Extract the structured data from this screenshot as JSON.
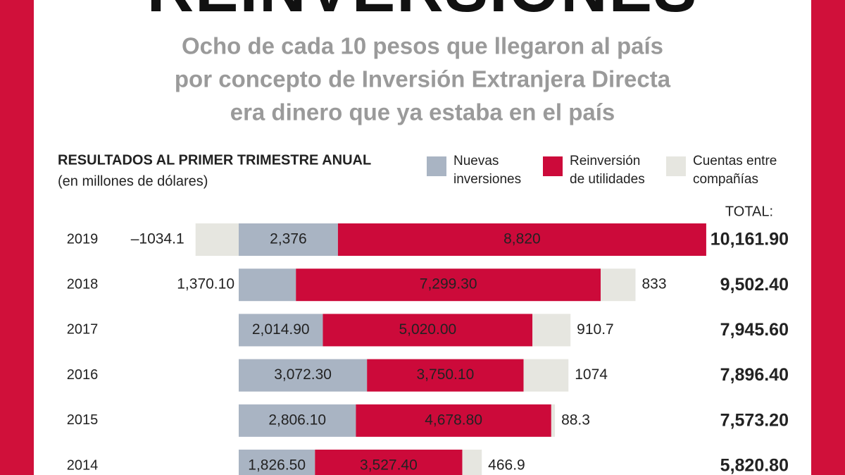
{
  "title": "REINVERSIONES",
  "subtitle": [
    "Ocho de cada 10 pesos que llegaron al país",
    "por concepto de Inversión Extranjera Directa",
    "era dinero que ya estaba en el país"
  ],
  "chart_data": {
    "type": "bar",
    "orientation": "horizontal",
    "stacked": true,
    "title": "RESULTADOS AL PRIMER TRIMESTRE ANUAL",
    "subtitle": "(en millones de dólares)",
    "categories": [
      "2019",
      "2018",
      "2017",
      "2016",
      "2015",
      "2014"
    ],
    "series": [
      {
        "name": "Nuevas inversiones",
        "color": "#a9b4c3",
        "values": [
          2376,
          1370.1,
          2014.9,
          3072.3,
          2806.1,
          1826.5
        ],
        "value_labels": [
          "2,376",
          "1,370.10",
          "2,014.90",
          "3,072.30",
          "2,806.10",
          "1,826.50"
        ]
      },
      {
        "name": "Reinversión de utilidades",
        "color": "#cc0a3a",
        "values": [
          8820,
          7299.3,
          5020,
          3750.1,
          4678.8,
          3527.4
        ],
        "value_labels": [
          "8,820",
          "7,299.30",
          "5,020.00",
          "3,750.10",
          "4,678.80",
          "3,527.40"
        ]
      },
      {
        "name": "Cuentas entre compañías",
        "color": "#e6e6e0",
        "values": [
          -1034.1,
          833,
          910.7,
          1074,
          88.3,
          466.9
        ],
        "value_labels": [
          "–1034.1",
          "833",
          "910.7",
          "1074",
          "88.3",
          "466.9"
        ]
      }
    ],
    "totals": {
      "name": "TOTAL:",
      "values": [
        10161.9,
        9502.4,
        7945.6,
        7896.4,
        7573.2,
        5820.8
      ],
      "value_labels": [
        "10,161.90",
        "9,502.40",
        "7,945.60",
        "7,896.40",
        "7,573.20",
        "5,820.80"
      ]
    }
  }
}
